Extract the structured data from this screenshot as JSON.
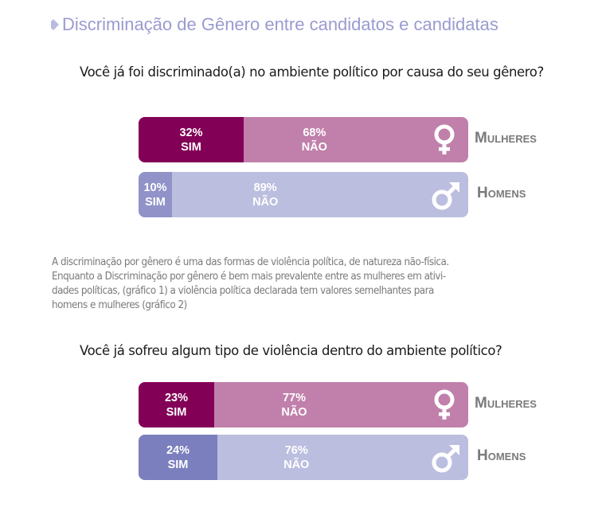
{
  "title": "Discriminação de Gênero entre candidatos e candidatas",
  "chart_data": [
    {
      "type": "bar",
      "orientation": "horizontal-stacked",
      "title": "Você já foi discriminado(a) no ambiente político por causa do seu gênero?",
      "categories": [
        "Mulheres",
        "Homens"
      ],
      "series": [
        {
          "name": "SIM",
          "values": [
            32,
            10
          ]
        },
        {
          "name": "NÃO",
          "values": [
            68,
            89
          ]
        }
      ],
      "labels": {
        "sim": [
          "32%",
          "10%"
        ],
        "nao": [
          "68%",
          "89%"
        ],
        "sim_word": "SIM",
        "nao_word": "NÃO"
      },
      "colors": {
        "mulheres_sim": "#830057",
        "mulheres_nao": "#c080ab",
        "homens_sim": "#9092c8",
        "homens_nao": "#bbbedf"
      },
      "icons": [
        "female-symbol-icon",
        "male-symbol-icon"
      ]
    },
    {
      "type": "bar",
      "orientation": "horizontal-stacked",
      "title": "Você já sofreu algum tipo de violência dentro do ambiente político?",
      "categories": [
        "Mulheres",
        "Homens"
      ],
      "series": [
        {
          "name": "SIM",
          "values": [
            23,
            24
          ]
        },
        {
          "name": "NÃO",
          "values": [
            77,
            76
          ]
        }
      ],
      "labels": {
        "sim": [
          "23%",
          "24%"
        ],
        "nao": [
          "77%",
          "76%"
        ],
        "sim_word": "SIM",
        "nao_word": "NÃO"
      },
      "colors": {
        "mulheres_sim": "#830057",
        "mulheres_nao": "#c080ab",
        "homens_sim": "#7b7fbd",
        "homens_nao": "#bbbedf"
      },
      "icons": [
        "female-symbol-icon",
        "male-symbol-icon"
      ]
    }
  ],
  "paragraph": [
    "A discriminação por gênero é uma das formas de violência política, de natureza não-física.",
    "Enquanto a Discriminação por gênero é bem mais prevalente entre as mulheres em ativi-",
    "dades políticas, (gráfico 1) a violência política declarada tem valores semelhantes para",
    "homens e mulheres (gráfico 2)"
  ]
}
